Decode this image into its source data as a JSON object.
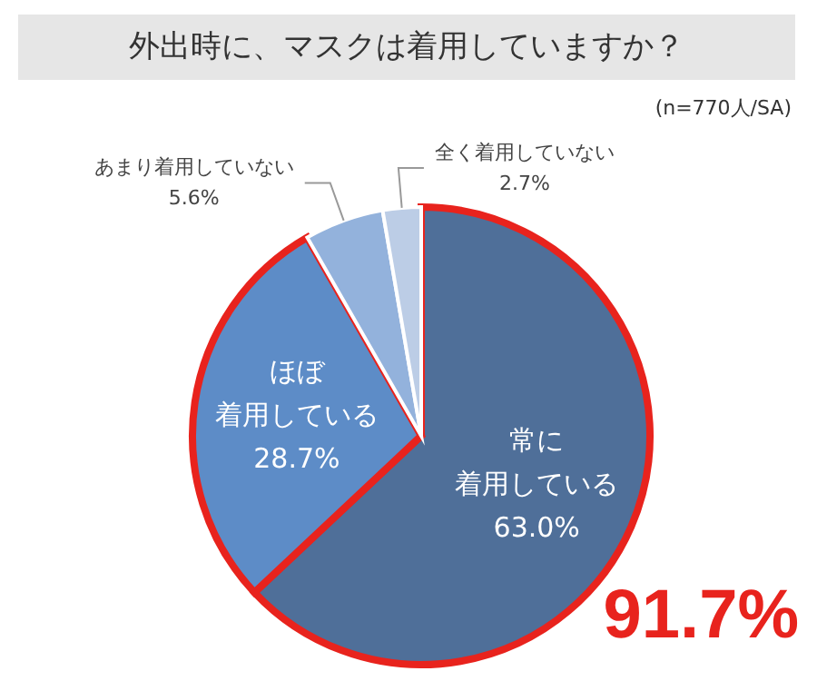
{
  "chart_data": {
    "type": "pie",
    "title": "外出時に、マスクは着用していますか？",
    "subtitle": "(n=770人/SA)",
    "categories": [
      "常に着用している",
      "ほぼ着用している",
      "あまり着用していない",
      "全く着用していない"
    ],
    "values": [
      63.0,
      28.7,
      5.6,
      2.7
    ],
    "value_labels": [
      "63.0%",
      "28.7%",
      "5.6%",
      "2.7%"
    ],
    "colors": [
      "#4f6f99",
      "#5d8cc7",
      "#93b2dc",
      "#bccde6"
    ],
    "annotations": [
      "91.7%"
    ],
    "legend": false
  }
}
